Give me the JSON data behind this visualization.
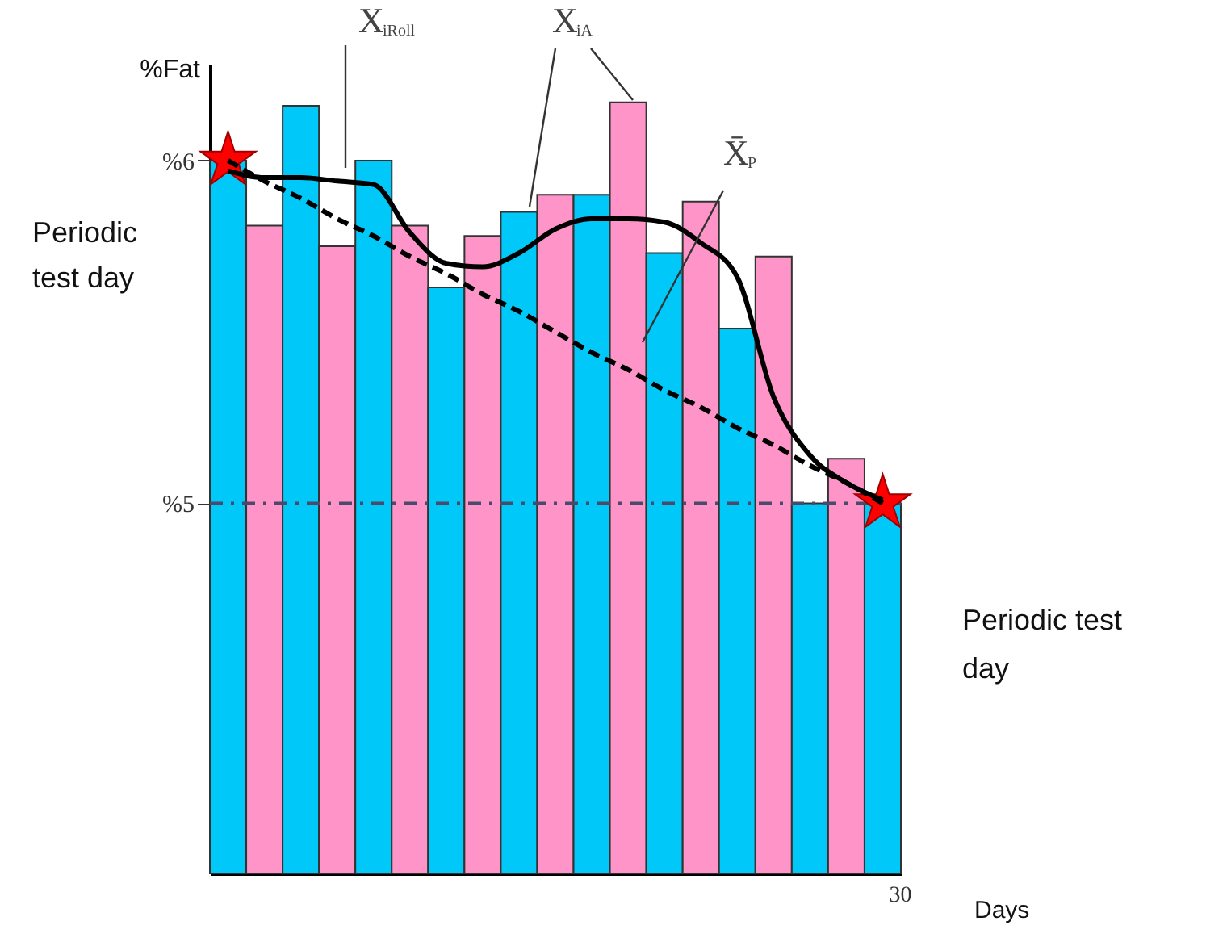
{
  "chart_data": {
    "type": "bar",
    "ylabel": "%Fat",
    "xlabel": "Days",
    "categories": [
      null,
      null,
      null,
      null,
      null,
      null,
      null,
      null,
      null,
      null,
      null,
      null,
      null,
      null,
      null,
      null,
      null,
      null,
      "30"
    ],
    "series": [
      {
        "type": "bar",
        "values": [
          6.0,
          5.81,
          6.16,
          5.75,
          6.0,
          5.81,
          5.63,
          5.78,
          5.85,
          5.9,
          5.9,
          6.17,
          5.73,
          5.88,
          5.51,
          5.72,
          5.0,
          5.13,
          5.0
        ],
        "colors": [
          "#00c8f8",
          "#ff94c8",
          "#00c8f8",
          "#ff94c8",
          "#00c8f8",
          "#ff94c8",
          "#00c8f8",
          "#ff94c8",
          "#00c8f8",
          "#ff94c8",
          "#00c8f8",
          "#ff94c8",
          "#00c8f8",
          "#ff94c8",
          "#00c8f8",
          "#ff94c8",
          "#00c8f8",
          "#ff94c8",
          "#00c8f8"
        ]
      },
      {
        "type": "line",
        "color": "#000000",
        "line_style": "solid",
        "values": [
          5.97,
          5.95,
          5.95,
          5.94,
          5.93,
          5.79,
          5.7,
          5.69,
          5.73,
          5.8,
          5.83,
          5.83,
          5.82,
          5.76,
          5.66,
          5.31,
          5.14,
          5.06,
          5.01
        ]
      },
      {
        "type": "line",
        "color": "#000000",
        "line_style": "dashed",
        "values": [
          6.0,
          5.94,
          5.89,
          5.83,
          5.78,
          5.72,
          5.67,
          5.61,
          5.56,
          5.5,
          5.44,
          5.39,
          5.33,
          5.28,
          5.22,
          5.17,
          5.11,
          5.06,
          5.0
        ]
      },
      {
        "type": "scatter",
        "marker": "star",
        "color": "#ff0000",
        "values": [
          6.0,
          null,
          null,
          null,
          null,
          null,
          null,
          null,
          null,
          null,
          null,
          null,
          null,
          null,
          null,
          null,
          null,
          null,
          5.0
        ]
      }
    ],
    "ylim": [
      3.92,
      6.28
    ],
    "yticks": [
      {
        "value": 6,
        "label": "%6"
      },
      {
        "value": 5,
        "label": "%5"
      }
    ],
    "ref_lines": [
      {
        "axis": "y",
        "value": 5,
        "color": "#4a4a6a",
        "line_style": "dashed"
      }
    ],
    "annotations": [
      "X$_{iRoll}$",
      "X$_{iA}$",
      "X̄$_{P}$",
      "Periodic test day",
      "Periodic test day"
    ],
    "grid": false
  }
}
